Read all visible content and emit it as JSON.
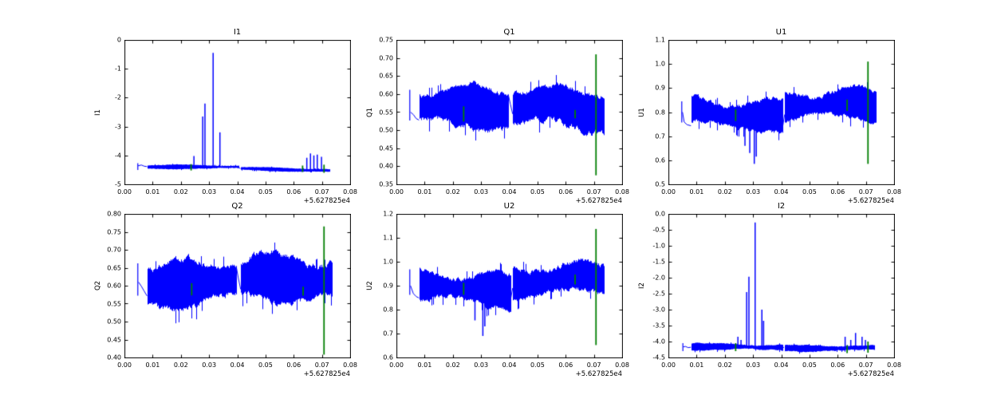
{
  "figure": {
    "background": "#ffffff",
    "x_offset_label": "+5.627825e4",
    "colors": {
      "line": "#0000ff",
      "marker": "#007f00",
      "axis": "#000000",
      "text": "#000000"
    },
    "xlim": [
      0,
      0.08
    ],
    "xticks": {
      "values": [
        0,
        0.01,
        0.02,
        0.03,
        0.04,
        0.05,
        0.06,
        0.07,
        0.08
      ],
      "labels": [
        "0.00",
        "0.01",
        "0.02",
        "0.03",
        "0.04",
        "0.05",
        "0.06",
        "0.07",
        "0.08"
      ]
    }
  },
  "chart_data": [
    {
      "type": "line",
      "title": "I1",
      "ylabel": "I1",
      "xlim": [
        0,
        0.08
      ],
      "ylim": [
        -5,
        0
      ],
      "grid": false,
      "legend": null,
      "x_offset": "+5.627825e4",
      "seed": 11,
      "yticks": [
        0,
        -1,
        -2,
        -3,
        -4,
        -5
      ],
      "ytick_labels": [
        "0",
        "-1",
        "-2",
        "-3",
        "-4",
        "-5"
      ],
      "intro": {
        "x": 0.0046,
        "y_range": [
          -4.5,
          -4.27
        ],
        "line": [
          [
            0.0048,
            -4.36
          ],
          [
            0.006,
            -4.33
          ],
          [
            0.007,
            -4.37
          ],
          [
            0.008,
            -4.38
          ]
        ]
      },
      "bands": [
        {
          "x": [
            0.008,
            0.0405
          ],
          "center": [
            -4.38,
            -4.4
          ],
          "amp_up": 0.1,
          "amp_dn": 0.1
        },
        {
          "x": [
            0.041,
            0.0728
          ],
          "center": [
            -4.46,
            -4.52
          ],
          "amp_up": 0.08,
          "amp_dn": 0.09
        }
      ],
      "connector": [
        [
          0.0405,
          -4.4
        ],
        [
          0.041,
          -4.46
        ]
      ],
      "spikes": [
        {
          "x": 0.0245,
          "y": -4.02
        },
        {
          "x": 0.0276,
          "y": -2.65
        },
        {
          "x": 0.0284,
          "y": -2.2
        },
        {
          "x": 0.0313,
          "y": -0.45
        },
        {
          "x": 0.0337,
          "y": -3.2
        },
        {
          "x": 0.0645,
          "y": -4.08
        },
        {
          "x": 0.0658,
          "y": -3.93
        },
        {
          "x": 0.067,
          "y": -4.0
        },
        {
          "x": 0.0682,
          "y": -3.97
        },
        {
          "x": 0.0697,
          "y": -4.05
        }
      ],
      "green_markers": [
        {
          "x": 0.0235,
          "y": [
            -4.52,
            -4.3
          ]
        },
        {
          "x": 0.063,
          "y": [
            -4.57,
            -4.35
          ]
        },
        {
          "x": 0.0706,
          "y": [
            -4.6,
            -4.32
          ]
        }
      ]
    },
    {
      "type": "line",
      "title": "Q1",
      "ylabel": "Q1",
      "xlim": [
        0,
        0.08
      ],
      "ylim": [
        0.35,
        0.75
      ],
      "grid": false,
      "legend": null,
      "x_offset": "+5.627825e4",
      "seed": 21,
      "yticks": [
        0.75,
        0.7,
        0.65,
        0.6,
        0.55,
        0.5,
        0.45,
        0.4,
        0.35
      ],
      "ytick_labels": [
        "0.75",
        "0.70",
        "0.65",
        "0.60",
        "0.55",
        "0.50",
        "0.45",
        "0.40",
        "0.35"
      ],
      "intro": {
        "x": 0.0046,
        "y_range": [
          0.527,
          0.612
        ],
        "line": [
          [
            0.005,
            0.55
          ],
          [
            0.006,
            0.543
          ],
          [
            0.007,
            0.532
          ],
          [
            0.008,
            0.527
          ]
        ]
      },
      "bands": [
        {
          "x": [
            0.008,
            0.0396
          ],
          "center": [
            0.565,
            0.565
          ],
          "amp_up": 0.072,
          "amp_dn": 0.088
        },
        {
          "x": [
            0.0412,
            0.0737
          ],
          "center": [
            0.57,
            0.568
          ],
          "amp_up": 0.076,
          "amp_dn": 0.088
        }
      ],
      "connector": [
        [
          0.0396,
          0.6
        ],
        [
          0.0404,
          0.572
        ],
        [
          0.0412,
          0.545
        ]
      ],
      "spikes": [],
      "green_markers": [
        {
          "x": 0.0237,
          "y": [
            0.524,
            0.566
          ]
        },
        {
          "x": 0.0632,
          "y": [
            0.533,
            0.556
          ]
        },
        {
          "x": 0.0706,
          "y": [
            0.375,
            0.71
          ]
        }
      ]
    },
    {
      "type": "line",
      "title": "U1",
      "ylabel": "U1",
      "xlim": [
        0,
        0.08
      ],
      "ylim": [
        0.5,
        1.1
      ],
      "grid": false,
      "legend": null,
      "x_offset": "+5.627825e4",
      "seed": 31,
      "yticks": [
        1.1,
        1.0,
        0.9,
        0.8,
        0.7,
        0.6,
        0.5
      ],
      "ytick_labels": [
        "1.1",
        "1.0",
        "0.9",
        "0.8",
        "0.7",
        "0.6",
        "0.5"
      ],
      "intro": {
        "x": 0.0046,
        "y_range": [
          0.757,
          0.845
        ],
        "line": [
          [
            0.005,
            0.8
          ],
          [
            0.0056,
            0.76
          ],
          [
            0.0066,
            0.75
          ],
          [
            0.008,
            0.745
          ]
        ]
      },
      "bands": [
        {
          "x": [
            0.008,
            0.0406
          ],
          "center": [
            0.8,
            0.79
          ],
          "amp_up": 0.088,
          "amp_dn": 0.088
        },
        {
          "x": [
            0.0412,
            0.0737
          ],
          "center": [
            0.825,
            0.822
          ],
          "amp_up": 0.092,
          "amp_dn": 0.085
        }
      ],
      "connector": [
        [
          0.0406,
          0.745
        ],
        [
          0.0412,
          0.79
        ]
      ],
      "spikes": [
        {
          "x": 0.027,
          "y": 0.66
        },
        {
          "x": 0.0287,
          "y": 0.63
        },
        {
          "x": 0.0303,
          "y": 0.585
        },
        {
          "x": 0.031,
          "y": 0.615
        }
      ],
      "green_markers": [
        {
          "x": 0.0237,
          "y": [
            0.763,
            0.812
          ]
        },
        {
          "x": 0.0632,
          "y": [
            0.805,
            0.852
          ]
        },
        {
          "x": 0.0706,
          "y": [
            0.585,
            1.01
          ]
        }
      ]
    },
    {
      "type": "line",
      "title": "Q2",
      "ylabel": "Q2",
      "xlim": [
        0,
        0.08
      ],
      "ylim": [
        0.4,
        0.8
      ],
      "grid": false,
      "legend": null,
      "x_offset": "+5.627825e4",
      "seed": 41,
      "yticks": [
        0.8,
        0.75,
        0.7,
        0.65,
        0.6,
        0.55,
        0.5,
        0.45,
        0.4
      ],
      "ytick_labels": [
        "0.80",
        "0.75",
        "0.70",
        "0.65",
        "0.60",
        "0.55",
        "0.50",
        "0.45",
        "0.40"
      ],
      "intro": {
        "x": 0.0046,
        "y_range": [
          0.572,
          0.662
        ],
        "line": [
          [
            0.005,
            0.61
          ],
          [
            0.006,
            0.6
          ],
          [
            0.007,
            0.585
          ],
          [
            0.008,
            0.572
          ]
        ]
      },
      "bands": [
        {
          "x": [
            0.008,
            0.0396
          ],
          "center": [
            0.613,
            0.615
          ],
          "amp_up": 0.084,
          "amp_dn": 0.092
        },
        {
          "x": [
            0.0412,
            0.0737
          ],
          "center": [
            0.617,
            0.615
          ],
          "amp_up": 0.087,
          "amp_dn": 0.085
        }
      ],
      "connector": [
        [
          0.0396,
          0.655
        ],
        [
          0.0404,
          0.62
        ],
        [
          0.0412,
          0.59
        ]
      ],
      "spikes": [],
      "green_markers": [
        {
          "x": 0.0237,
          "y": [
            0.573,
            0.607
          ]
        },
        {
          "x": 0.0632,
          "y": [
            0.572,
            0.597
          ]
        },
        {
          "x": 0.0706,
          "y": [
            0.408,
            0.765
          ]
        }
      ]
    },
    {
      "type": "line",
      "title": "U2",
      "ylabel": "U2",
      "xlim": [
        0,
        0.08
      ],
      "ylim": [
        0.6,
        1.2
      ],
      "grid": false,
      "legend": null,
      "x_offset": "+5.627825e4",
      "seed": 51,
      "yticks": [
        1.2,
        1.1,
        1.0,
        0.9,
        0.8,
        0.7,
        0.6
      ],
      "ytick_labels": [
        "1.2",
        "1.1",
        "1.0",
        "0.9",
        "0.8",
        "0.7",
        "0.6"
      ],
      "intro": {
        "x": 0.0046,
        "y_range": [
          0.862,
          0.968
        ],
        "line": [
          [
            0.005,
            0.9
          ],
          [
            0.006,
            0.865
          ],
          [
            0.007,
            0.852
          ],
          [
            0.008,
            0.848
          ]
        ]
      },
      "bands": [
        {
          "x": [
            0.008,
            0.0406
          ],
          "center": [
            0.895,
            0.885
          ],
          "amp_up": 0.098,
          "amp_dn": 0.095
        },
        {
          "x": [
            0.0412,
            0.0737
          ],
          "center": [
            0.92,
            0.916
          ],
          "amp_up": 0.1,
          "amp_dn": 0.09
        }
      ],
      "connector": [
        [
          0.0406,
          0.85
        ],
        [
          0.0412,
          0.89
        ]
      ],
      "spikes": [
        {
          "x": 0.0277,
          "y": 0.755
        },
        {
          "x": 0.0305,
          "y": 0.69
        },
        {
          "x": 0.0312,
          "y": 0.73
        }
      ],
      "green_markers": [
        {
          "x": 0.0237,
          "y": [
            0.862,
            0.912
          ]
        },
        {
          "x": 0.0632,
          "y": [
            0.905,
            0.947
          ]
        },
        {
          "x": 0.0706,
          "y": [
            0.652,
            1.137
          ]
        }
      ]
    },
    {
      "type": "line",
      "title": "I2",
      "ylabel": "I2",
      "xlim": [
        0,
        0.08
      ],
      "ylim": [
        -4.5,
        0
      ],
      "grid": false,
      "legend": null,
      "x_offset": "+5.627825e4",
      "seed": 61,
      "yticks": [
        0,
        -0.5,
        -1.0,
        -1.5,
        -2.0,
        -2.5,
        -3.0,
        -3.5,
        -4.0,
        -4.5
      ],
      "ytick_labels": [
        "0.0",
        "-0.5",
        "-1.0",
        "-1.5",
        "-2.0",
        "-2.5",
        "-3.0",
        "-3.5",
        "-4.0",
        "-4.5"
      ],
      "intro": {
        "x": 0.005,
        "y_range": [
          -4.3,
          -4.05
        ],
        "line": [
          [
            0.0052,
            -4.17
          ],
          [
            0.006,
            -4.15
          ],
          [
            0.007,
            -4.18
          ],
          [
            0.008,
            -4.16
          ]
        ]
      },
      "bands": [
        {
          "x": [
            0.008,
            0.0405
          ],
          "center": [
            -4.16,
            -4.17
          ],
          "amp_up": 0.14,
          "amp_dn": 0.16
        },
        {
          "x": [
            0.041,
            0.073
          ],
          "center": [
            -4.19,
            -4.21
          ],
          "amp_up": 0.12,
          "amp_dn": 0.14
        }
      ],
      "connector": [
        [
          0.0405,
          -4.17
        ],
        [
          0.041,
          -4.19
        ]
      ],
      "spikes": [
        {
          "x": 0.0245,
          "y": -3.85
        },
        {
          "x": 0.0256,
          "y": -3.95
        },
        {
          "x": 0.0276,
          "y": -2.45
        },
        {
          "x": 0.0284,
          "y": -1.97
        },
        {
          "x": 0.0306,
          "y": -0.27
        },
        {
          "x": 0.033,
          "y": -3.0
        },
        {
          "x": 0.0336,
          "y": -3.35
        },
        {
          "x": 0.0625,
          "y": -3.85
        },
        {
          "x": 0.0645,
          "y": -3.95
        },
        {
          "x": 0.0662,
          "y": -3.73
        },
        {
          "x": 0.0685,
          "y": -3.85
        },
        {
          "x": 0.0697,
          "y": -3.95
        }
      ],
      "green_markers": [
        {
          "x": 0.0237,
          "y": [
            -4.3,
            -4.05
          ]
        },
        {
          "x": 0.0632,
          "y": [
            -4.36,
            -4.12
          ]
        },
        {
          "x": 0.0706,
          "y": [
            -4.35,
            -4.0
          ]
        }
      ]
    }
  ]
}
